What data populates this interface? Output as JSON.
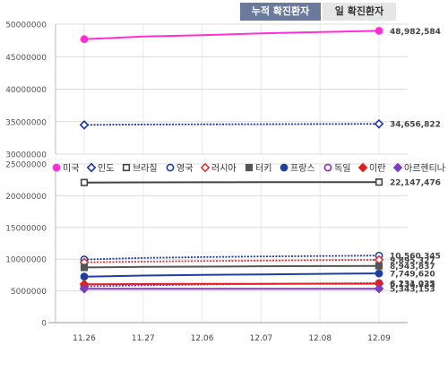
{
  "tabs": [
    {
      "label": "누적 확진환자",
      "active": true
    },
    {
      "label": "일 확진환자",
      "active": false
    }
  ],
  "chart_data": {
    "type": "line",
    "x": [
      "11.26",
      "11.27",
      "12.06",
      "12.07",
      "12.08",
      "12.09"
    ],
    "top_panel": {
      "ylim": [
        30000000,
        50000000
      ],
      "yticks": [
        "50000000",
        "45000000",
        "40000000",
        "35000000",
        "30000000"
      ],
      "series": [
        {
          "name": "미국",
          "color": "#ff2fd6",
          "marker": "filled-circle",
          "values": [
            47700000,
            48100000,
            48300000,
            48600000,
            48800000,
            48982584
          ],
          "end_label": "48,982,584"
        },
        {
          "name": "인도",
          "color": "#2233aa",
          "marker": "open-diamond",
          "values": [
            34500000,
            34560000,
            34590000,
            34610000,
            34630000,
            34656822
          ],
          "end_label": "34,656,822"
        }
      ]
    },
    "bottom_panel": {
      "ylim": [
        0,
        25000000
      ],
      "yticks": [
        "25000000",
        "20000000",
        "15000000",
        "10000000",
        "5000000",
        "0"
      ],
      "series": [
        {
          "name": "브라질",
          "color": "#444444",
          "marker": "open-square",
          "values": [
            22080000,
            22100000,
            22115000,
            22128000,
            22138000,
            22147476
          ],
          "end_label": "22,147,476"
        },
        {
          "name": "영국",
          "color": "#1f3fa0",
          "marker": "open-circle",
          "values": [
            9950000,
            10200000,
            10330000,
            10420000,
            10490000,
            10560345
          ],
          "end_label": "10,560,345"
        },
        {
          "name": "러시아",
          "color": "#d63a3a",
          "marker": "open-diamond",
          "values": [
            9500000,
            9620000,
            9700000,
            9780000,
            9840000,
            9895327
          ],
          "end_label": "9,895,327"
        },
        {
          "name": "터키",
          "color": "#555555",
          "marker": "filled-square",
          "values": [
            8700000,
            8780000,
            8830000,
            8880000,
            8910000,
            8943837
          ],
          "end_label": "8,943,837"
        },
        {
          "name": "프랑스",
          "color": "#1f3fa0",
          "marker": "filled-circle",
          "values": [
            7250000,
            7420000,
            7520000,
            7600000,
            7680000,
            7749620
          ],
          "end_label": "7,749,620"
        },
        {
          "name": "독일",
          "color": "#8a2bb0",
          "marker": "open-circle",
          "values": [
            5700000,
            5880000,
            6000000,
            6100000,
            6170000,
            6231025
          ],
          "end_label": "6,231,025"
        },
        {
          "name": "이란",
          "color": "#e02020",
          "marker": "filled-diamond",
          "values": [
            6050000,
            6080000,
            6100000,
            6115000,
            6125000,
            6134232
          ],
          "end_label": "6,134,232"
        },
        {
          "name": "아르헨티나",
          "color": "#7b3fc0",
          "marker": "filled-diamond",
          "values": [
            5330000,
            5334000,
            5337000,
            5339000,
            5341000,
            5343153
          ],
          "end_label": "5,343,153"
        }
      ]
    },
    "legend": {
      "position": "between-panels",
      "entries": [
        {
          "name": "미국",
          "color": "#ff2fd6",
          "marker": "filled-circle"
        },
        {
          "name": "인도",
          "color": "#2233aa",
          "marker": "open-diamond"
        },
        {
          "name": "브라질",
          "color": "#444444",
          "marker": "open-square"
        },
        {
          "name": "영국",
          "color": "#1f3fa0",
          "marker": "open-circle"
        },
        {
          "name": "러시아",
          "color": "#d63a3a",
          "marker": "open-diamond"
        },
        {
          "name": "터키",
          "color": "#555555",
          "marker": "filled-square"
        },
        {
          "name": "프랑스",
          "color": "#1f3fa0",
          "marker": "filled-circle"
        },
        {
          "name": "독일",
          "color": "#8a2bb0",
          "marker": "open-circle"
        },
        {
          "name": "이란",
          "color": "#e02020",
          "marker": "filled-diamond"
        },
        {
          "name": "아르헨티나",
          "color": "#7b3fc0",
          "marker": "filled-diamond"
        }
      ]
    },
    "grid": true
  }
}
